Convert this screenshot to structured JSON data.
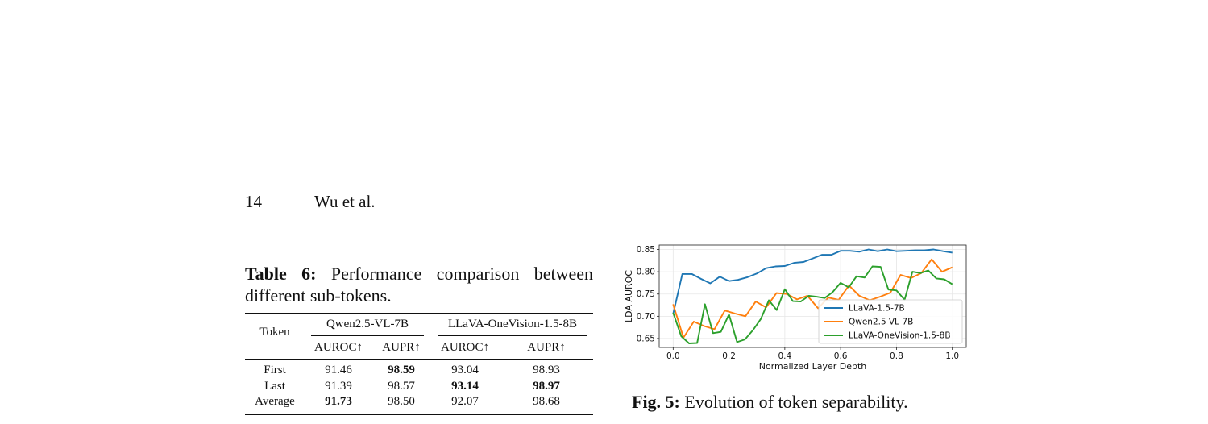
{
  "header": {
    "page_number": "14",
    "authors": "Wu et al."
  },
  "table6": {
    "caption_label": "Table 6:",
    "caption_text": "Performance comparison between different sub-tokens.",
    "col_token": "Token",
    "groups": [
      "Qwen2.5-VL-7B",
      "LLaVA-OneVision-1.5-8B"
    ],
    "metrics": [
      "AUROC↑",
      "AUPR↑",
      "AUROC↑",
      "AUPR↑"
    ],
    "rows": [
      {
        "label": "First",
        "cells": [
          "91.46",
          "98.59",
          "93.04",
          "98.93"
        ]
      },
      {
        "label": "Last",
        "cells": [
          "91.39",
          "98.57",
          "93.14",
          "98.97"
        ]
      },
      {
        "label": "Average",
        "cells": [
          "91.73",
          "98.50",
          "92.07",
          "98.68"
        ]
      }
    ]
  },
  "figure5": {
    "caption_label": "Fig. 5:",
    "caption_text": "Evolution of token separability."
  },
  "chart_data": {
    "type": "line",
    "title": "",
    "xlabel": "Normalized Layer Depth",
    "ylabel": "LDA AUROC",
    "xlim": [
      -0.05,
      1.05
    ],
    "ylim": [
      0.63,
      0.86
    ],
    "xticks": [
      "0.0",
      "0.2",
      "0.4",
      "0.6",
      "0.8",
      "1.0"
    ],
    "yticks": [
      "0.65",
      "0.70",
      "0.75",
      "0.80",
      "0.85"
    ],
    "grid": true,
    "legend_position": "lower-right",
    "series": [
      {
        "name": "LLaVA-1.5-7B",
        "color": "#1f77b4",
        "x": [
          0.0,
          0.033,
          0.067,
          0.1,
          0.133,
          0.167,
          0.2,
          0.233,
          0.267,
          0.3,
          0.333,
          0.367,
          0.4,
          0.433,
          0.467,
          0.5,
          0.533,
          0.567,
          0.6,
          0.633,
          0.667,
          0.7,
          0.733,
          0.767,
          0.8,
          0.833,
          0.867,
          0.9,
          0.933,
          0.967,
          1.0
        ],
        "y": [
          0.705,
          0.795,
          0.795,
          0.784,
          0.774,
          0.789,
          0.779,
          0.782,
          0.788,
          0.796,
          0.808,
          0.812,
          0.813,
          0.82,
          0.822,
          0.83,
          0.838,
          0.838,
          0.847,
          0.847,
          0.845,
          0.85,
          0.846,
          0.85,
          0.846,
          0.847,
          0.848,
          0.848,
          0.85,
          0.846,
          0.843
        ]
      },
      {
        "name": "Qwen2.5-VL-7B",
        "color": "#ff7f0e",
        "x": [
          0.0,
          0.037,
          0.074,
          0.111,
          0.148,
          0.185,
          0.222,
          0.259,
          0.296,
          0.333,
          0.37,
          0.407,
          0.444,
          0.481,
          0.519,
          0.556,
          0.593,
          0.63,
          0.667,
          0.704,
          0.741,
          0.778,
          0.815,
          0.852,
          0.889,
          0.926,
          0.963,
          1.0
        ],
        "y": [
          0.727,
          0.652,
          0.688,
          0.678,
          0.671,
          0.713,
          0.706,
          0.7,
          0.733,
          0.72,
          0.752,
          0.75,
          0.738,
          0.746,
          0.718,
          0.742,
          0.737,
          0.769,
          0.746,
          0.736,
          0.744,
          0.753,
          0.793,
          0.786,
          0.797,
          0.828,
          0.8,
          0.81
        ]
      },
      {
        "name": "LLaVA-OneVision-1.5-8B",
        "color": "#2ca02c",
        "x": [
          0.0,
          0.029,
          0.057,
          0.086,
          0.114,
          0.143,
          0.171,
          0.2,
          0.229,
          0.257,
          0.286,
          0.314,
          0.343,
          0.371,
          0.4,
          0.429,
          0.457,
          0.486,
          0.514,
          0.543,
          0.571,
          0.6,
          0.629,
          0.657,
          0.686,
          0.714,
          0.743,
          0.771,
          0.8,
          0.829,
          0.857,
          0.886,
          0.914,
          0.943,
          0.971,
          1.0
        ],
        "y": [
          0.708,
          0.655,
          0.639,
          0.64,
          0.727,
          0.662,
          0.665,
          0.704,
          0.642,
          0.648,
          0.669,
          0.694,
          0.736,
          0.714,
          0.761,
          0.734,
          0.733,
          0.746,
          0.744,
          0.741,
          0.754,
          0.775,
          0.765,
          0.79,
          0.787,
          0.812,
          0.811,
          0.76,
          0.758,
          0.737,
          0.8,
          0.797,
          0.803,
          0.785,
          0.783,
          0.772
        ]
      }
    ]
  }
}
